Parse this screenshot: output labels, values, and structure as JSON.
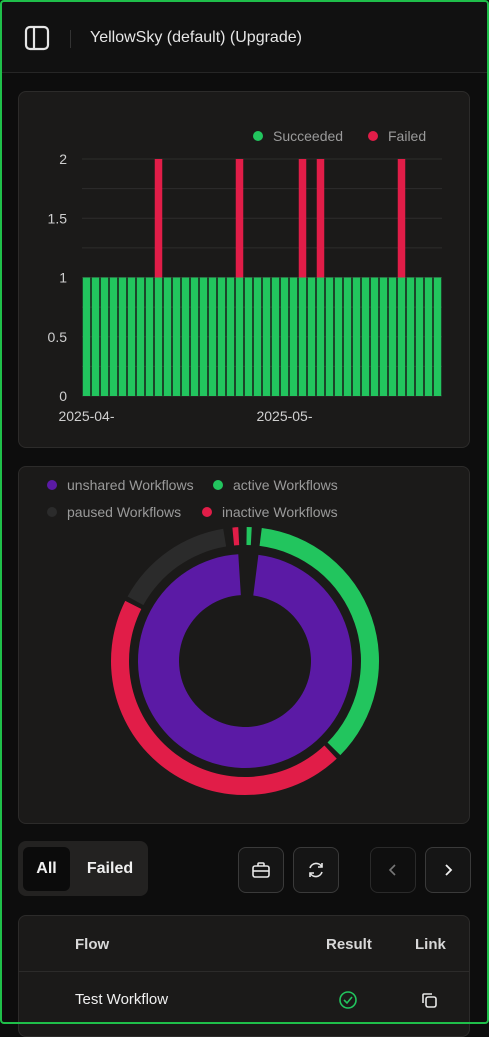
{
  "header": {
    "title": "YellowSky (default) (Upgrade)",
    "sidebar_icon": "sidebar-panel-icon"
  },
  "runs_chart": {
    "chart_data": {
      "type": "bar",
      "stacked": true,
      "x_tick_labels": [
        "2025-04-",
        "2025-05-"
      ],
      "y_ticks": [
        "0",
        "0.5",
        "1",
        "1.5",
        "2"
      ],
      "ylim": [
        0,
        2
      ],
      "grid": true,
      "legend_position": "top-right",
      "series": [
        {
          "name": "Succeeded",
          "color": "#22c55e",
          "values": [
            1,
            1,
            1,
            1,
            1,
            1,
            1,
            1,
            1,
            1,
            1,
            1,
            1,
            1,
            1,
            1,
            1,
            1,
            1,
            1,
            1,
            1,
            1,
            1,
            1,
            1,
            1,
            1,
            1,
            1,
            1,
            1,
            1,
            1,
            1,
            1,
            1,
            1,
            1,
            1
          ]
        },
        {
          "name": "Failed",
          "color": "#e11d48",
          "values": [
            0,
            0,
            0,
            0,
            0,
            0,
            0,
            0,
            1,
            0,
            0,
            0,
            0,
            0,
            0,
            0,
            0,
            1,
            0,
            0,
            0,
            0,
            0,
            0,
            1,
            0,
            1,
            0,
            0,
            0,
            0,
            0,
            0,
            0,
            0,
            1,
            0,
            0,
            0,
            0
          ]
        }
      ]
    }
  },
  "workflow_chart": {
    "legend": [
      {
        "label": "unshared Workflows",
        "color": "#5b1aa5"
      },
      {
        "label": "active Workflows",
        "color": "#22c55e"
      },
      {
        "label": "paused Workflows",
        "color": "#2b2b2b"
      },
      {
        "label": "inactive Workflows",
        "color": "#e11d48"
      }
    ],
    "chart_data": {
      "type": "pie",
      "rings": [
        {
          "ring": "inner",
          "slices": [
            {
              "name": "unshared Workflows",
              "value": 0.97
            }
          ]
        },
        {
          "ring": "outer",
          "slices": [
            {
              "name": "active Workflows",
              "value": 0.36
            },
            {
              "name": "inactive Workflows",
              "value": 0.45
            },
            {
              "name": "paused Workflows",
              "value": 0.15
            }
          ]
        }
      ]
    }
  },
  "filters": {
    "all_label": "All",
    "failed_label": "Failed",
    "active": "All"
  },
  "toolbar": {
    "briefcase_icon": "briefcase-icon",
    "refresh_icon": "refresh-icon",
    "prev_icon": "chevron-left-icon",
    "next_icon": "chevron-right-icon"
  },
  "table": {
    "columns": [
      "Flow",
      "Result",
      "Link"
    ],
    "rows": [
      {
        "flow": "Test Workflow",
        "result": "success",
        "link_icon": "copy-icon"
      }
    ]
  }
}
